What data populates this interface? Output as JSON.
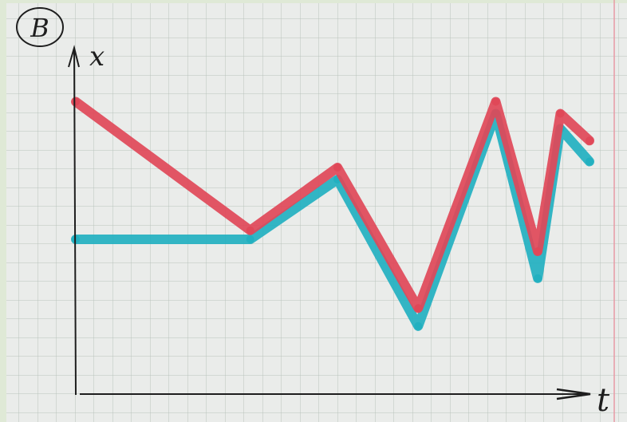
{
  "circled_label": "B",
  "chart_data": {
    "type": "line",
    "ylabel": "x",
    "xlabel": "t",
    "xlim": [
      0,
      17
    ],
    "ylim": [
      0,
      10
    ],
    "grid": true,
    "series": [
      {
        "color": "#e04858",
        "x": [
          0,
          5.4,
          8.1,
          10.6,
          13.0,
          14.3,
          15.0,
          15.9
        ],
        "y": [
          9.8,
          5.5,
          7.6,
          2.9,
          9.8,
          4.8,
          9.4,
          8.5
        ]
      },
      {
        "color": "#22b0c0",
        "x": [
          0,
          5.4,
          8.1,
          10.6,
          13.0,
          14.3,
          15.0,
          15.9
        ],
        "y": [
          5.2,
          5.2,
          7.2,
          2.3,
          9.4,
          3.9,
          8.9,
          7.8
        ]
      }
    ]
  }
}
